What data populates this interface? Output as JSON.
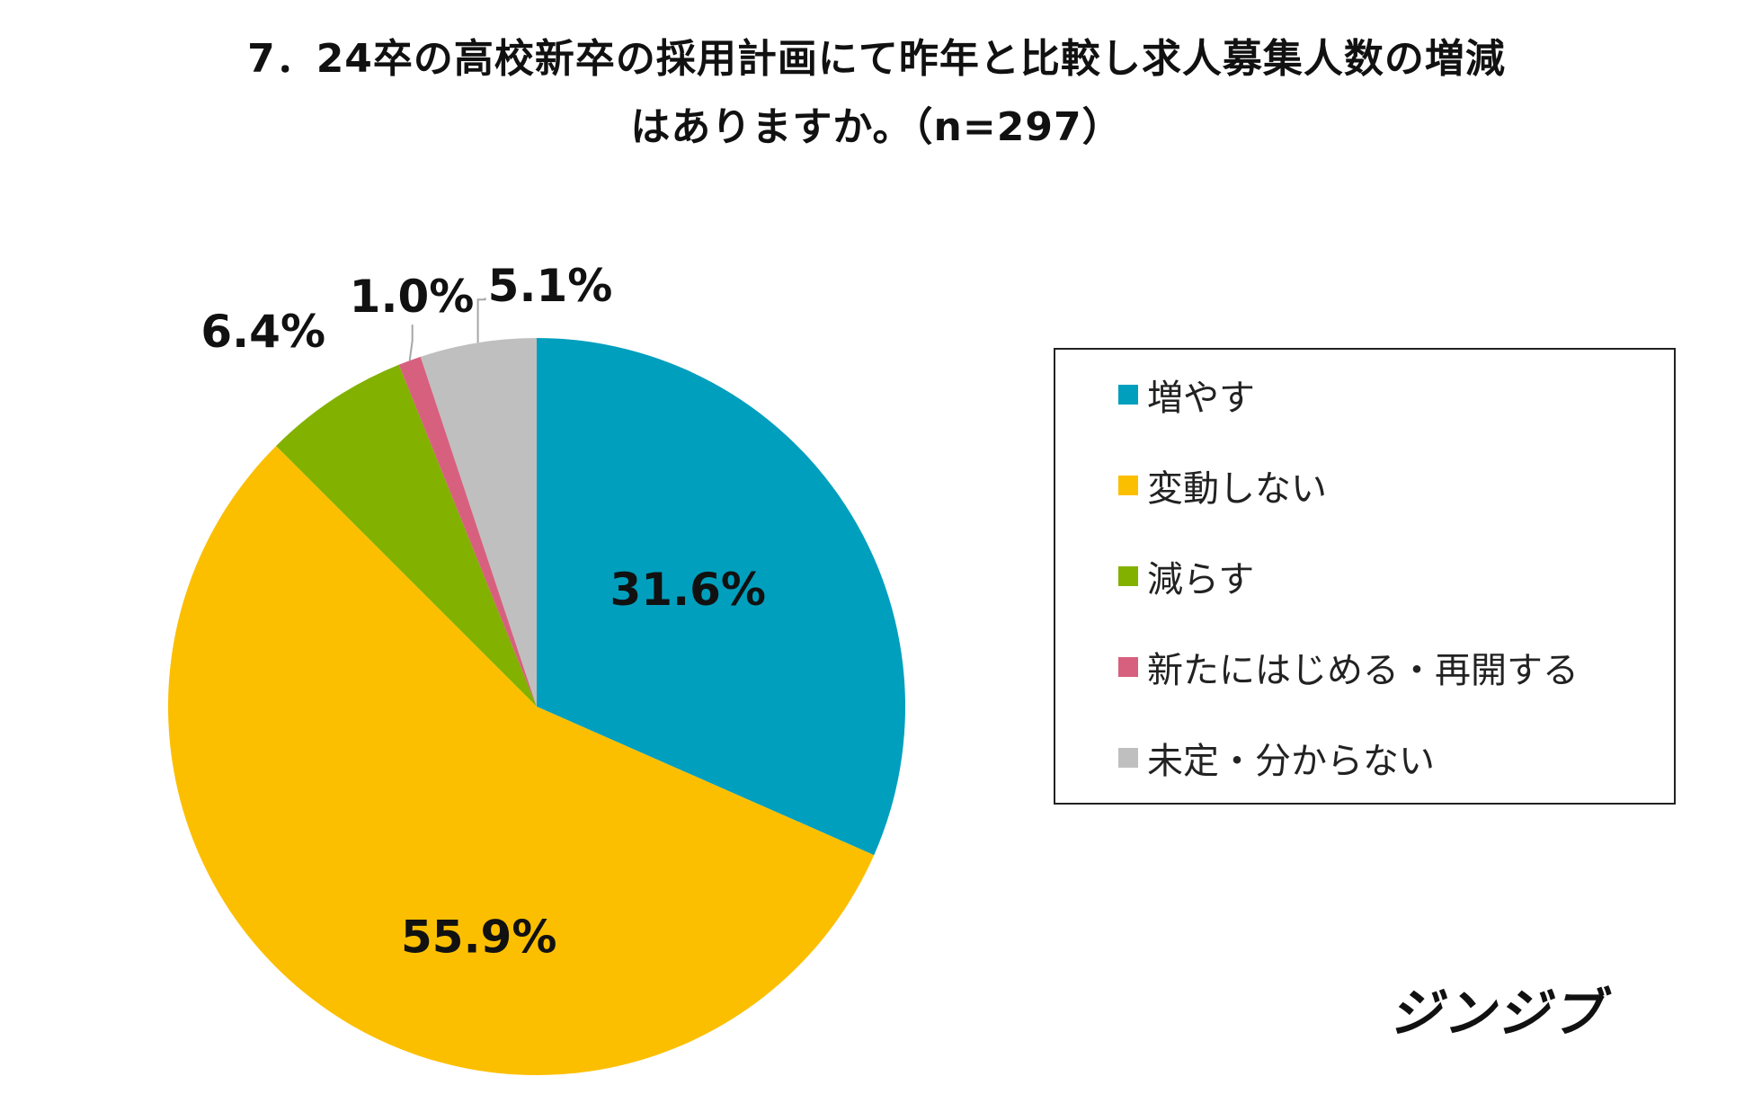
{
  "chart_data": {
    "type": "pie",
    "title_lines": [
      "7．24卒の高校新卒の採用計画にて昨年と比較し求人募集人数の増減",
      "はありますか。（n=297）"
    ],
    "slices": [
      {
        "label": "増やす",
        "value": 31.6,
        "value_label": "31.6%",
        "color": "#009fbe"
      },
      {
        "label": "変動しない",
        "value": 55.9,
        "value_label": "55.9%",
        "color": "#fcbf00"
      },
      {
        "label": "減らす",
        "value": 6.4,
        "value_label": "6.4%",
        "color": "#82b100"
      },
      {
        "label": "新たにはじめる・再開する",
        "value": 1.0,
        "value_label": "1.0%",
        "color": "#d7607f"
      },
      {
        "label": "未定・分からない",
        "value": 5.1,
        "value_label": "5.1%",
        "color": "#bfbfbf"
      }
    ],
    "start_angle": "12 o'clock",
    "direction": "clockwise",
    "legend_placement": "right"
  },
  "logo_text": "ジンジブ"
}
